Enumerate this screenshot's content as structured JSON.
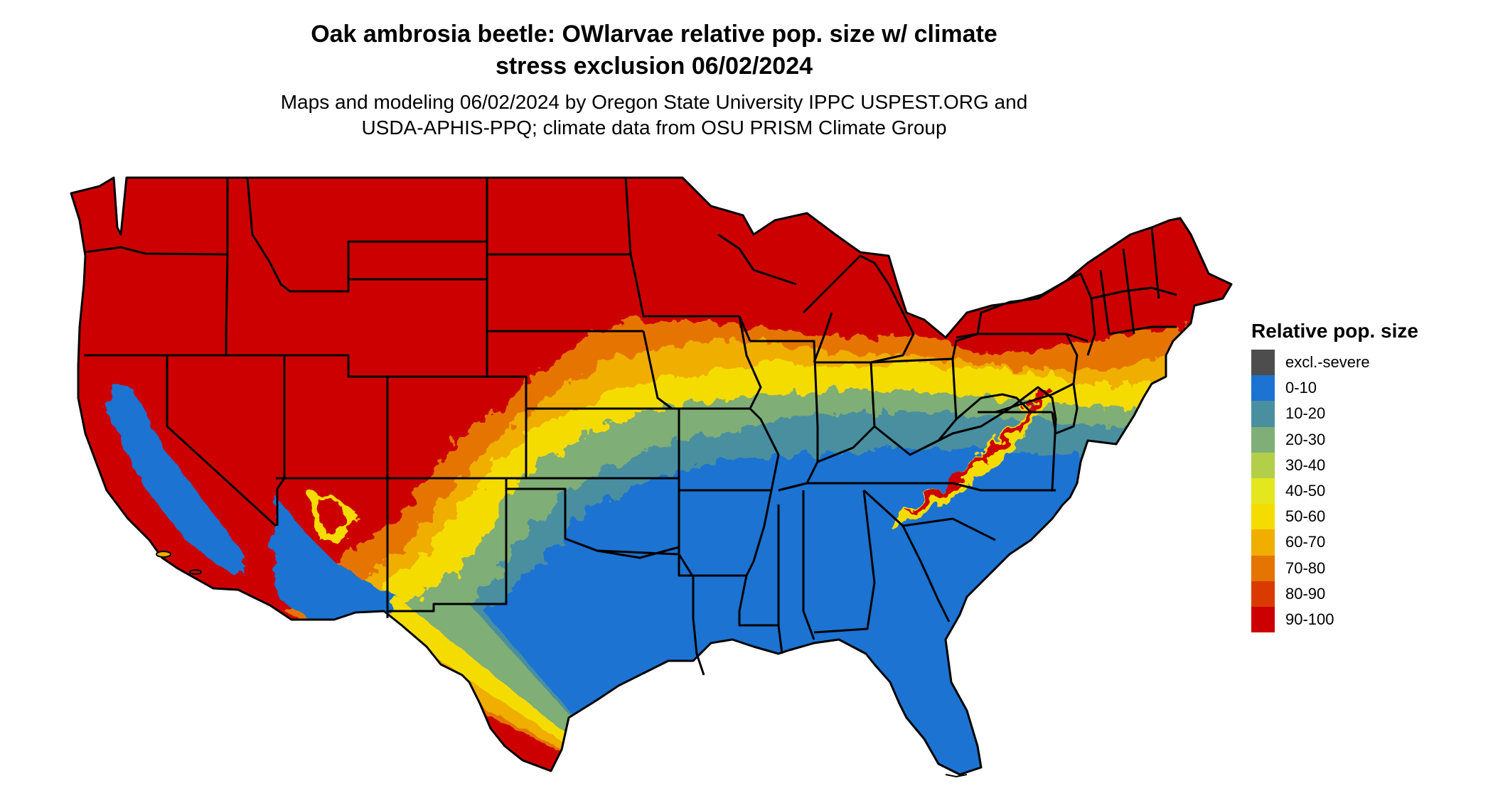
{
  "title_line1": "Oak ambrosia beetle: OWlarvae relative pop. size w/ climate",
  "title_line2": "stress exclusion 06/02/2024",
  "subtitle_line1": "Maps and modeling 06/02/2024 by Oregon State University IPPC USPEST.ORG and",
  "subtitle_line2": "USDA-APHIS-PPQ; climate data from OSU PRISM Climate Group",
  "legend": {
    "title": "Relative pop. size",
    "items": [
      {
        "label": "excl.-severe",
        "color": "#4d4d4d"
      },
      {
        "label": "0-10",
        "color": "#1c73d1"
      },
      {
        "label": "10-20",
        "color": "#4a8fa0"
      },
      {
        "label": "20-30",
        "color": "#7fae76"
      },
      {
        "label": "30-40",
        "color": "#b3cf4a"
      },
      {
        "label": "40-50",
        "color": "#e4e71e"
      },
      {
        "label": "50-60",
        "color": "#f5dc00"
      },
      {
        "label": "60-70",
        "color": "#efae00"
      },
      {
        "label": "70-80",
        "color": "#e57400"
      },
      {
        "label": "80-90",
        "color": "#d93a00"
      },
      {
        "label": "90-100",
        "color": "#cc0000"
      }
    ]
  }
}
